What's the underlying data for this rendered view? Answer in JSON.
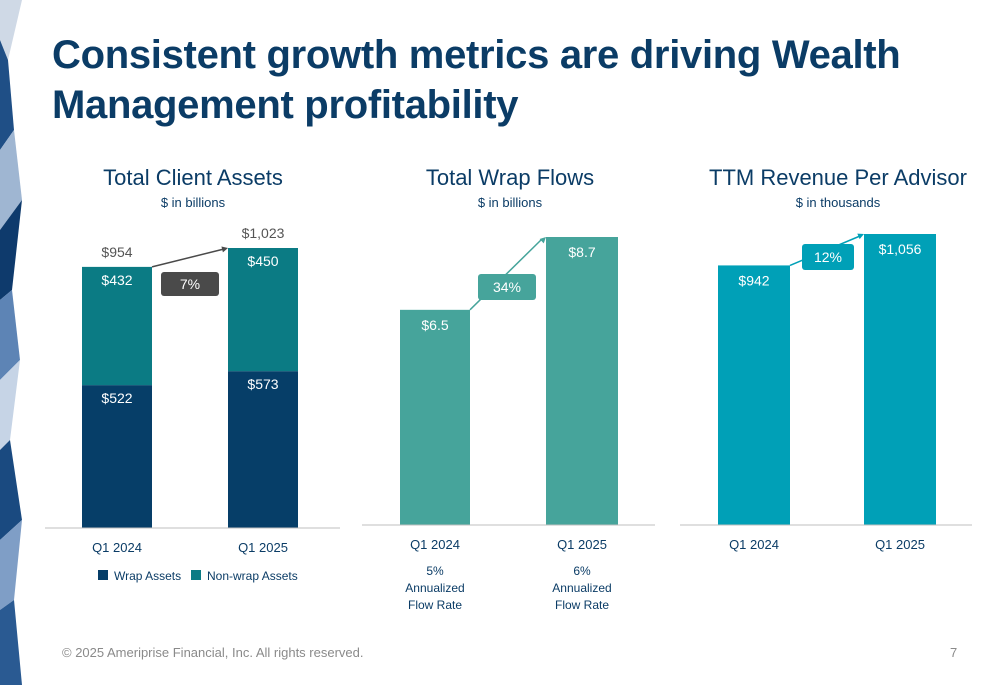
{
  "slide": {
    "title": "Consistent growth metrics are driving Wealth Management profitability",
    "footer": "© 2025 Ameriprise Financial, Inc. All rights reserved.",
    "page_number": "7"
  },
  "colors": {
    "title": "#0b3c66",
    "wrap_assets": "#063e68",
    "non_wrap_assets": "#0b7b84",
    "wrap_flows": "#46a49b",
    "revenue": "#00a0b7",
    "growth_badge_dark": "#4a4a4a"
  },
  "chart_data": [
    {
      "type": "bar",
      "stacked": true,
      "title": "Total Client Assets",
      "subtitle": "$ in billions",
      "categories": [
        "Q1 2024",
        "Q1 2025"
      ],
      "series": [
        {
          "name": "Wrap Assets",
          "values": [
            522,
            573
          ],
          "labels": [
            "$522",
            "$573"
          ],
          "color": "#063e68"
        },
        {
          "name": "Non-wrap Assets",
          "values": [
            432,
            450
          ],
          "labels": [
            "$432",
            "$450"
          ],
          "color": "#0b7b84"
        }
      ],
      "totals": [
        "$954",
        "$1,023"
      ],
      "growth": "7%",
      "legend": "bottom",
      "ylim": [
        0,
        1100
      ]
    },
    {
      "type": "bar",
      "title": "Total Wrap Flows",
      "subtitle": "$ in billions",
      "categories": [
        "Q1 2024",
        "Q1 2025"
      ],
      "values": [
        6.5,
        8.7
      ],
      "labels": [
        "$6.5",
        "$8.7"
      ],
      "growth": "34%",
      "notes": [
        [
          "5%",
          "Annualized",
          "Flow Rate"
        ],
        [
          "6%",
          "Annualized",
          "Flow Rate"
        ]
      ],
      "color": "#46a49b",
      "ylim": [
        0,
        8.7
      ]
    },
    {
      "type": "bar",
      "title": "TTM Revenue Per Advisor",
      "subtitle": "$ in thousands",
      "categories": [
        "Q1 2024",
        "Q1 2025"
      ],
      "values": [
        942,
        1056
      ],
      "labels": [
        "$942",
        "$1,056"
      ],
      "growth": "12%",
      "color": "#00a0b7",
      "ylim": [
        0,
        1056
      ]
    }
  ]
}
